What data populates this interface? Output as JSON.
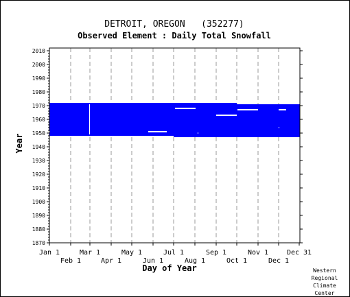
{
  "chart_data": {
    "type": "heatmap",
    "title": "DETROIT, OREGON   (352277)",
    "subtitle": "Observed Element : Daily Total Snowfall",
    "xlabel": "Day of Year",
    "ylabel": "Year",
    "ylim": [
      1870,
      2012
    ],
    "yticks": [
      1870,
      1880,
      1890,
      1900,
      1910,
      1920,
      1930,
      1940,
      1950,
      1960,
      1970,
      1980,
      1990,
      2000,
      2010
    ],
    "xlim": [
      1,
      365
    ],
    "xticks": [
      {
        "label": "Jan 1",
        "day": 1,
        "row": 1
      },
      {
        "label": "Feb 1",
        "day": 32,
        "row": 2
      },
      {
        "label": "Mar 1",
        "day": 60,
        "row": 1
      },
      {
        "label": "Apr 1",
        "day": 91,
        "row": 2
      },
      {
        "label": "May 1",
        "day": 121,
        "row": 1
      },
      {
        "label": "Jun 1",
        "day": 152,
        "row": 2
      },
      {
        "label": "Jul 1",
        "day": 182,
        "row": 1
      },
      {
        "label": "Aug 1",
        "day": 213,
        "row": 2
      },
      {
        "label": "Sep 1",
        "day": 244,
        "row": 1
      },
      {
        "label": "Oct 1",
        "day": 274,
        "row": 2
      },
      {
        "label": "Nov 1",
        "day": 305,
        "row": 1
      },
      {
        "label": "Dec 1",
        "day": 335,
        "row": 2
      },
      {
        "label": "Dec 31",
        "day": 365,
        "row": 1
      }
    ],
    "grid": true,
    "data_color": "#0000ff",
    "coverage": [
      {
        "day_start": 1,
        "day_end": 182,
        "year_start": 1948,
        "year_end": 1972
      },
      {
        "day_start": 182,
        "day_end": 274,
        "year_start": 1947,
        "year_end": 1972
      },
      {
        "day_start": 274,
        "day_end": 366,
        "year_start": 1947,
        "year_end": 1971
      }
    ],
    "gaps": [
      {
        "day_start": 145,
        "day_end": 172,
        "year": 1951
      },
      {
        "day_start": 184,
        "day_end": 214,
        "year": 1968
      },
      {
        "day_start": 244,
        "day_end": 274,
        "year": 1963
      },
      {
        "day_start": 275,
        "day_end": 305,
        "year": 1967
      },
      {
        "day_start": 335,
        "day_end": 346,
        "year": 1967
      },
      {
        "day_start": 59,
        "day_end": 60,
        "year": 1949,
        "year_end": 1971
      },
      {
        "day_start": 335,
        "day_end": 336,
        "year": 1954
      },
      {
        "day_start": 1,
        "day_end": 2,
        "year": 1951
      },
      {
        "day_start": 217,
        "day_end": 218,
        "year": 1950
      }
    ]
  },
  "credit": {
    "line1": "Western",
    "line2": "Regional",
    "line3": "Climate",
    "line4": "Center"
  }
}
